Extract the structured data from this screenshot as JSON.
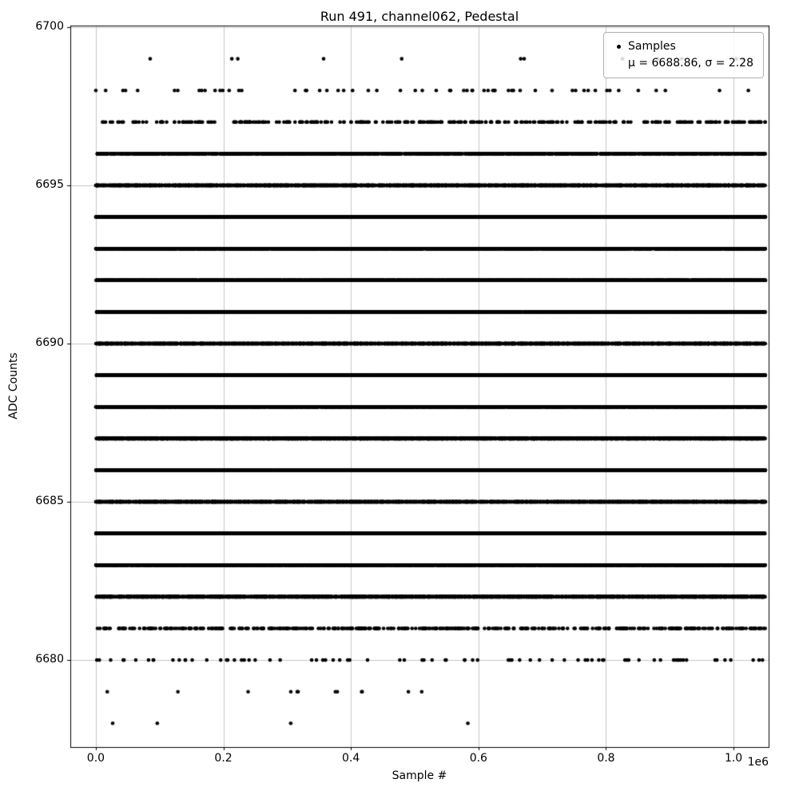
{
  "chart_data": {
    "type": "scatter",
    "title": "Run 491, channel062, Pedestal",
    "xlabel": "Sample #",
    "ylabel": "ADC Counts",
    "x_offset_label": "1e6",
    "background": "#ffffff",
    "grid": true,
    "grid_color": "#c6c6c6",
    "axes_color": "#000000",
    "marker_color": "#000000",
    "marker_diameter_px": 4.6,
    "xlim": [
      -40000,
      1055000
    ],
    "ylim": [
      6677.25,
      6700.05
    ],
    "x_data_range": [
      0,
      1050000
    ],
    "x_ticks": [
      {
        "value": 0,
        "label": "0.0"
      },
      {
        "value": 200000,
        "label": "0.2"
      },
      {
        "value": 400000,
        "label": "0.4"
      },
      {
        "value": 600000,
        "label": "0.6"
      },
      {
        "value": 800000,
        "label": "0.8"
      },
      {
        "value": 1000000,
        "label": "1.0"
      }
    ],
    "y_ticks": [
      {
        "value": 6680,
        "label": "6680"
      },
      {
        "value": 6685,
        "label": "6685"
      },
      {
        "value": 6690,
        "label": "6690"
      },
      {
        "value": 6695,
        "label": "6695"
      },
      {
        "value": 6700,
        "label": "6700"
      }
    ],
    "legend": {
      "position": "upper right",
      "label": "Samples",
      "stats": "μ = 6688.86, σ = 2.28"
    },
    "stats": {
      "mu": 6688.86,
      "sigma": 2.28
    },
    "bands": [
      {
        "adc": 6699,
        "count": 12
      },
      {
        "adc": 6698,
        "count": 60
      },
      {
        "adc": 6697,
        "count": 330
      },
      {
        "adc": 6696,
        "count": 1300
      },
      {
        "adc": 6695,
        "count": 4500
      },
      {
        "adc": 6694,
        "count": 14900
      },
      {
        "adc": 6693,
        "count": 36100
      },
      {
        "adc": 6692,
        "count": 71500
      },
      {
        "adc": 6691,
        "count": 118000
      },
      {
        "adc": 6690,
        "count": 161000
      },
      {
        "adc": 6689,
        "count": 182000
      },
      {
        "adc": 6688,
        "count": 170000
      },
      {
        "adc": 6687,
        "count": 130000
      },
      {
        "adc": 6686,
        "count": 84700
      },
      {
        "adc": 6685,
        "count": 44900
      },
      {
        "adc": 6684,
        "count": 19600
      },
      {
        "adc": 6683,
        "count": 5000
      },
      {
        "adc": 6682,
        "count": 2100
      },
      {
        "adc": 6681,
        "count": 430
      },
      {
        "adc": 6680,
        "count": 80
      },
      {
        "adc": 6679,
        "count": 12
      },
      {
        "adc": 6678,
        "count": 4
      }
    ]
  }
}
